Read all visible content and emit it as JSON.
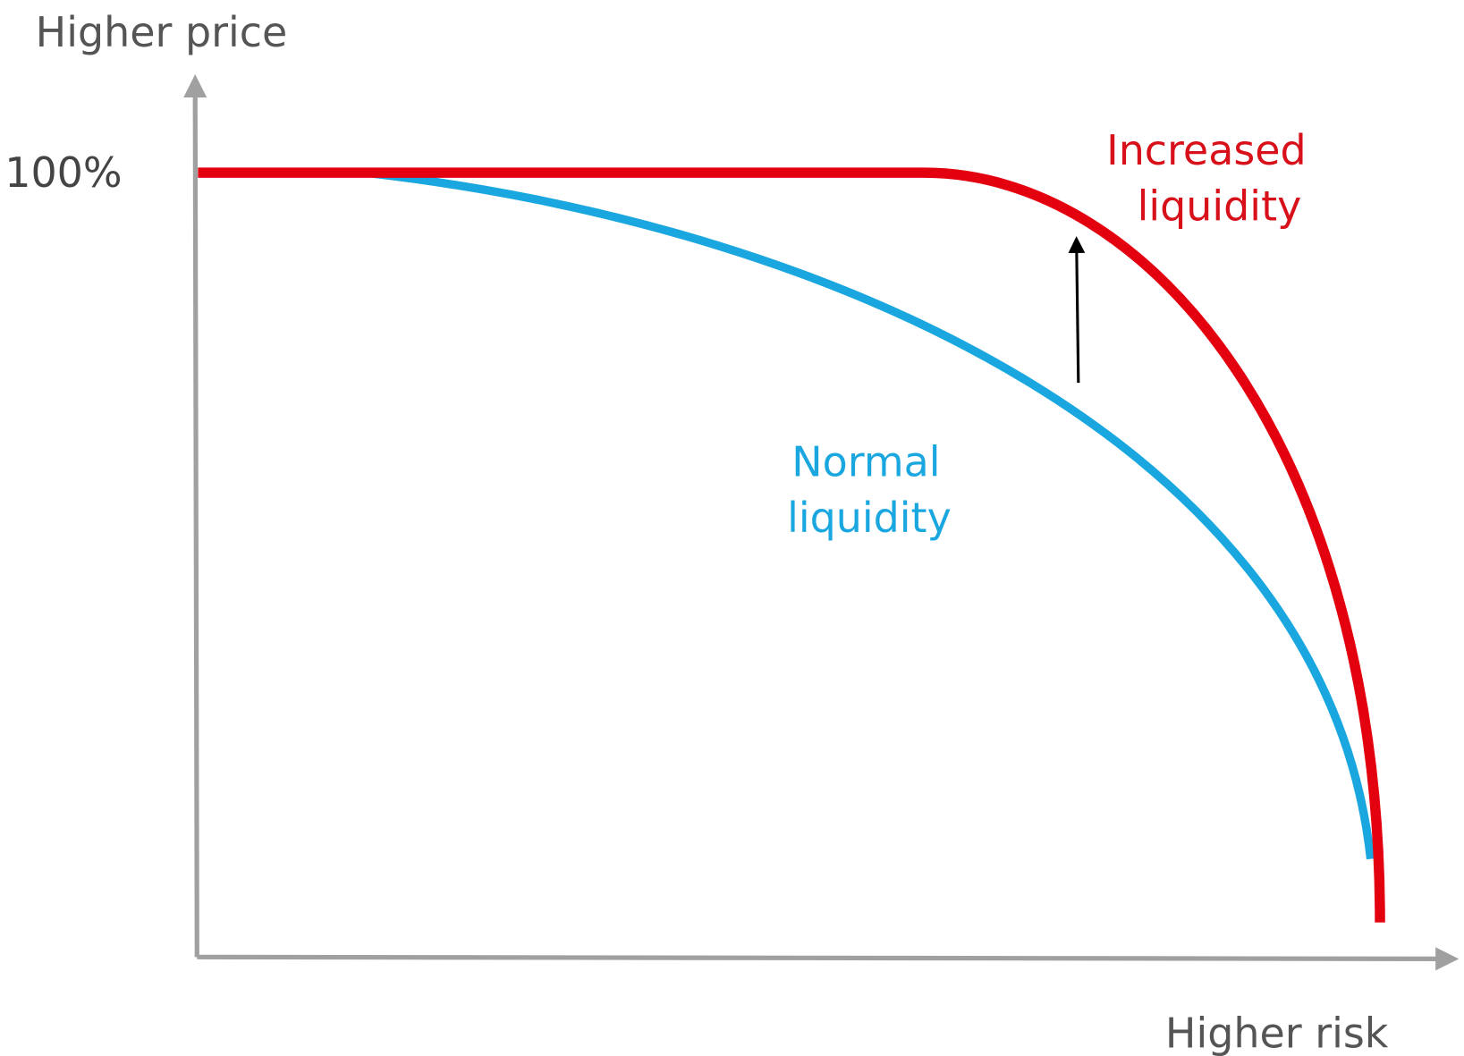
{
  "axes": {
    "y_label": "Higher price",
    "x_label": "Higher risk",
    "y_tick": "100%"
  },
  "curves": [
    {
      "label_lines": [
        "Increased",
        "liquidity"
      ]
    },
    {
      "label_lines": [
        "Normal",
        "liquidity"
      ]
    }
  ]
}
